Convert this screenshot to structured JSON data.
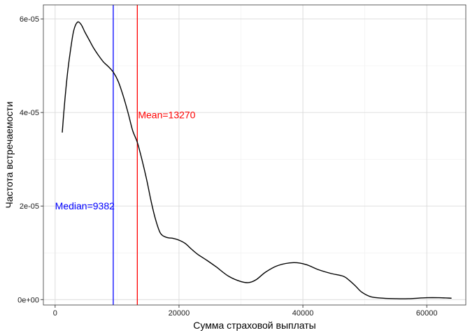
{
  "chart_data": {
    "type": "line",
    "title": "",
    "xlabel": "Сумма страховой выплаты",
    "ylabel": "Частота встречаемости",
    "xlim": [
      -1900,
      66300
    ],
    "ylim": [
      -1.15e-06,
      6.3e-05
    ],
    "grid": true,
    "x_ticks": [
      {
        "value": 0,
        "label": "0"
      },
      {
        "value": 20000,
        "label": "20000"
      },
      {
        "value": 40000,
        "label": "40000"
      },
      {
        "value": 60000,
        "label": "60000"
      }
    ],
    "y_ticks": [
      {
        "value": 0,
        "label": "0e+00"
      },
      {
        "value": 2e-05,
        "label": "2e-05"
      },
      {
        "value": 4e-05,
        "label": "4e-05"
      },
      {
        "value": 6e-05,
        "label": "6e-05"
      }
    ],
    "series": [
      {
        "color": "#000000",
        "x": [
          1150,
          1400,
          1700,
          2050,
          2500,
          3000,
          3600,
          4200,
          4800,
          5500,
          6200,
          7000,
          7800,
          8600,
          9400,
          10200,
          11000,
          11800,
          12500,
          13270,
          14000,
          14800,
          15500,
          16200,
          17000,
          18000,
          19000,
          20000,
          21000,
          22000,
          23000,
          24500,
          26000,
          28000,
          30000,
          31300,
          32500,
          34000,
          36000,
          38500,
          40500,
          42500,
          44500,
          46500,
          47500,
          48500,
          49500,
          51000,
          53000,
          55000,
          57000,
          60000,
          62000,
          64000
        ],
        "y": [
          3.57e-05,
          4e-05,
          4.45e-05,
          4.9e-05,
          5.35e-05,
          5.75e-05,
          5.93e-05,
          5.88e-05,
          5.72e-05,
          5.55e-05,
          5.38e-05,
          5.22e-05,
          5.08e-05,
          4.98e-05,
          4.86e-05,
          4.66e-05,
          4.35e-05,
          3.98e-05,
          3.62e-05,
          3.36e-05,
          3e-05,
          2.55e-05,
          2.1e-05,
          1.72e-05,
          1.42e-05,
          1.33e-05,
          1.31e-05,
          1.27e-05,
          1.2e-05,
          1.08e-05,
          9.7e-06,
          8.4e-06,
          7e-06,
          5e-06,
          3.85e-06,
          3.65e-06,
          4.3e-06,
          5.9e-06,
          7.3e-06,
          7.9e-06,
          7.5e-06,
          6.4e-06,
          5.6e-06,
          5e-06,
          4.1e-06,
          2.9e-06,
          1.6e-06,
          6e-07,
          3e-07,
          2e-07,
          2e-07,
          4e-07,
          4e-07,
          3e-07
        ]
      }
    ],
    "vlines": [
      {
        "name": "median",
        "value": 9382,
        "color": "#0000ff",
        "label": "Median=9382",
        "label_y": 2e-05,
        "anchor": "end"
      },
      {
        "name": "mean",
        "value": 13270,
        "color": "#ff0000",
        "label": "Mean=13270",
        "label_y": 3.95e-05,
        "anchor": "start"
      }
    ]
  }
}
